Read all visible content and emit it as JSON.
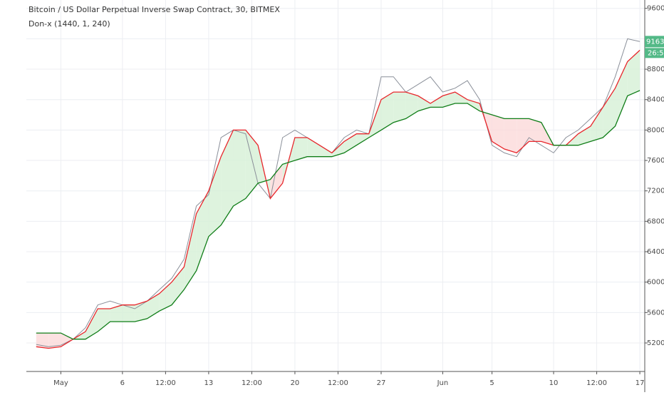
{
  "chart_data": {
    "type": "line",
    "title": "Bitcoin / US Dollar Perpetual Inverse Swap Contract, 30, BITMEX",
    "subtitle": "Don-x (1440, 1, 240)",
    "x": [
      -1,
      0,
      1,
      2,
      3,
      4,
      5,
      6,
      7,
      8,
      9,
      10,
      11,
      12,
      13,
      14,
      15,
      16,
      17,
      18,
      19,
      20,
      21,
      22,
      23,
      24,
      25,
      26,
      27,
      28,
      29,
      30,
      31,
      32,
      33,
      34,
      35,
      36,
      37,
      38,
      39,
      40,
      41,
      42,
      43,
      44,
      45,
      46,
      47,
      48
    ],
    "series": [
      {
        "color": "#8a8f99",
        "values": [
          5180,
          5150,
          5170,
          5250,
          5400,
          5700,
          5750,
          5700,
          5650,
          5750,
          5900,
          6050,
          6300,
          7000,
          7150,
          7900,
          8000,
          7950,
          7300,
          7100,
          7900,
          8000,
          7900,
          7800,
          7700,
          7900,
          8000,
          7950,
          8700,
          8700,
          8500,
          8600,
          8700,
          8500,
          8550,
          8650,
          8400,
          7800,
          7700,
          7650,
          7900,
          7800,
          7700,
          7900,
          8000,
          8150,
          8300,
          8700,
          9200,
          9163
        ]
      },
      {
        "color": "#e8262b",
        "values": [
          5150,
          5130,
          5150,
          5250,
          5350,
          5650,
          5650,
          5700,
          5700,
          5750,
          5850,
          6000,
          6200,
          6900,
          7200,
          7650,
          8000,
          8000,
          7800,
          7100,
          7300,
          7900,
          7900,
          7800,
          7700,
          7850,
          7950,
          7950,
          8400,
          8500,
          8500,
          8450,
          8350,
          8450,
          8500,
          8400,
          8350,
          7850,
          7750,
          7700,
          7850,
          7850,
          7800,
          7800,
          7950,
          8050,
          8300,
          8550,
          8900,
          9050
        ]
      },
      {
        "color": "#0f7d17",
        "values": [
          5330,
          5330,
          5330,
          5250,
          5250,
          5350,
          5480,
          5480,
          5480,
          5520,
          5620,
          5700,
          5900,
          6150,
          6600,
          6750,
          7000,
          7100,
          7300,
          7350,
          7550,
          7600,
          7650,
          7650,
          7650,
          7700,
          7800,
          7900,
          8000,
          8100,
          8150,
          8250,
          8300,
          8300,
          8350,
          8350,
          8250,
          8200,
          8150,
          8150,
          8150,
          8100,
          7800,
          7800,
          7800,
          7850,
          7900,
          8050,
          8450,
          8520
        ]
      }
    ],
    "xlim": [
      -1.8,
      48.4
    ],
    "xticks": [
      {
        "value": 1,
        "label": "May"
      },
      6,
      {
        "value": 9.5,
        "label": "12:00"
      },
      13,
      {
        "value": 16.5,
        "label": "12:00"
      },
      20,
      {
        "value": 23.5,
        "label": "12:00"
      },
      27,
      {
        "value": 32,
        "label": "Jun"
      },
      {
        "value": 36,
        "label": "5"
      },
      {
        "value": 41,
        "label": "10"
      },
      {
        "value": 44.5,
        "label": "12:00"
      },
      {
        "value": 48,
        "label": "17"
      }
    ],
    "ylim": [
      4825,
      9710
    ],
    "yticks": [
      {
        "value": 5200,
        "label": "5200.0"
      },
      {
        "value": 5600,
        "label": "5600.0"
      },
      {
        "value": 6000,
        "label": "6000.0"
      },
      {
        "value": 6400,
        "label": "6400.0"
      },
      {
        "value": 6800,
        "label": "6800.0"
      },
      {
        "value": 7200,
        "label": "7200.0"
      },
      {
        "value": 7600,
        "label": "7600.0"
      },
      {
        "value": 8000,
        "label": "8000.0"
      },
      {
        "value": 8400,
        "label": "8400.0"
      },
      {
        "value": 8800,
        "label": "8800.0"
      },
      {
        "value": 9200,
        "label": "9200.0"
      },
      {
        "value": 9600,
        "label": "9600.0"
      }
    ],
    "last_price": {
      "value": 9163,
      "label": "9163.0"
    },
    "countdown": "26:52",
    "grid": true,
    "fill_up_color": "#d6f0d6",
    "fill_down_color": "#fbd9d9"
  }
}
